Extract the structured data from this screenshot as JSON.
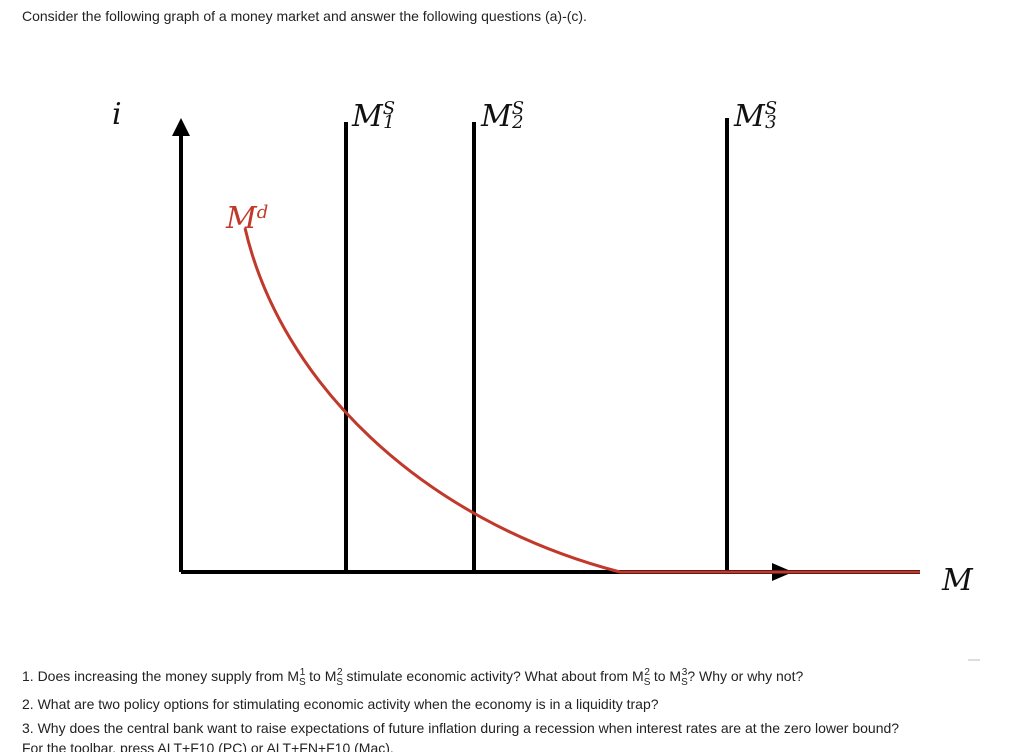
{
  "intro": "Consider the following graph of a money market and answer the following questions (a)-(c).",
  "diagram": {
    "y_axis_label": "i",
    "x_axis_label": "M",
    "demand_label": {
      "base": "M",
      "sup": "d"
    },
    "supply_labels": [
      {
        "base": "M",
        "sup": "S",
        "sub": "1"
      },
      {
        "base": "M",
        "sup": "S",
        "sub": "2"
      },
      {
        "base": "M",
        "sup": "S",
        "sub": "3"
      }
    ]
  },
  "questions": [
    [
      {
        "text": "1. Does increasing the money supply from M"
      },
      {
        "text": "S",
        "style": "sub"
      },
      {
        "text": "1",
        "style": "sup"
      },
      {
        "text": " to M"
      },
      {
        "text": "S",
        "style": "sub"
      },
      {
        "text": "2",
        "style": "sup"
      },
      {
        "text": " stimulate economic activity? What about from M"
      },
      {
        "text": "S",
        "style": "sub"
      },
      {
        "text": "2",
        "style": "sup"
      },
      {
        "text": " to M"
      },
      {
        "text": "S",
        "style": "sub"
      },
      {
        "text": "3",
        "style": "sup"
      },
      {
        "text": "? Why or why not?"
      }
    ],
    [
      {
        "text": "2. What are two policy options for stimulating economic activity when the economy is in a liquidity trap?"
      }
    ],
    [
      {
        "text": "3. Why does the central bank want to raise expectations of future inflation during a recession when interest rates are at the zero lower bound?"
      }
    ]
  ],
  "footer": "For the toolbar, press ALT+F10 (PC) or ALT+FN+F10 (Mac)."
}
